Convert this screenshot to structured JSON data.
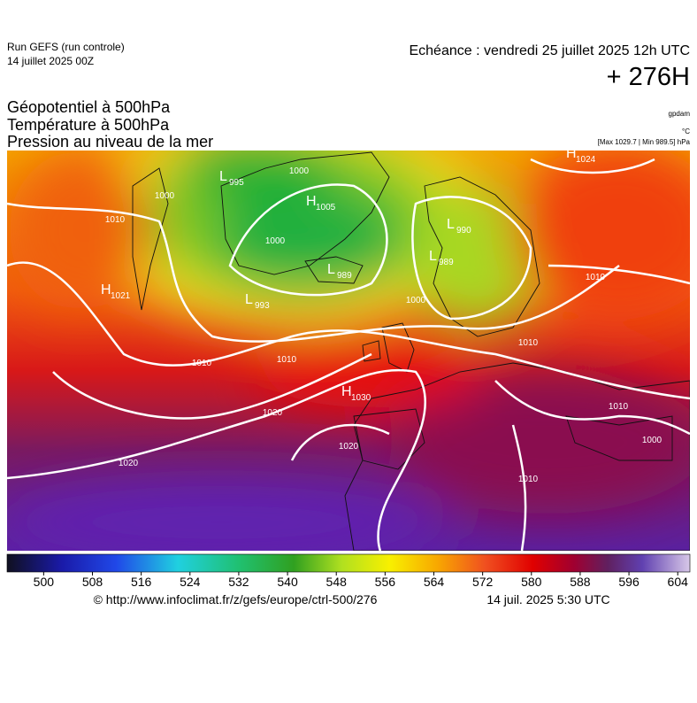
{
  "header": {
    "run": "Run GEFS (run controle)",
    "run_date": "14 juillet 2025 00Z",
    "valid": "Echéance : vendredi 25 juillet 2025 12h UTC",
    "lead": "+ 276H"
  },
  "titles": [
    "Géopotentiel à 500hPa",
    "Température à 500hPa",
    "Pression au niveau de la mer"
  ],
  "units": {
    "geopotential": "gpdam",
    "temperature": "°C",
    "pressure": "[Max 1029.7 | Min 989.5] hPa"
  },
  "pressure_centers": [
    {
      "letter": "L",
      "value": 995
    },
    {
      "letter": "H",
      "value": 1005
    },
    {
      "letter": "L",
      "value": 990
    },
    {
      "letter": "L",
      "value": 989
    },
    {
      "letter": "H",
      "value": 1021
    },
    {
      "letter": "L",
      "value": 993
    },
    {
      "letter": "L",
      "value": 989
    },
    {
      "letter": "H",
      "value": 1030
    },
    {
      "letter": "H",
      "value": 1024
    }
  ],
  "isobar_labels": [
    1000,
    1000,
    1010,
    1000,
    1010,
    1000,
    1010,
    1010,
    1010,
    1020,
    1010,
    1000,
    1020,
    1020,
    1010
  ],
  "colorbar": {
    "lim": [
      494,
      606
    ],
    "ticks": [
      500,
      508,
      516,
      524,
      532,
      540,
      548,
      556,
      564,
      572,
      580,
      588,
      596,
      604
    ]
  },
  "footer": {
    "source": "© http://www.infoclimat.fr/z/gefs/europe/ctrl-500/276",
    "issued": "14 juil. 2025  5:30 UTC"
  }
}
